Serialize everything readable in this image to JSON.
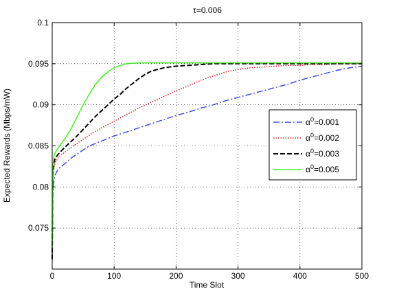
{
  "chart_data": {
    "type": "line",
    "title": "τ=0.006",
    "xlabel": "Time Slot",
    "ylabel": "Expected Rewards (Mbps/mW)",
    "xlim": [
      0,
      500
    ],
    "ylim": [
      0.07,
      0.1
    ],
    "xticks": [
      0,
      100,
      200,
      300,
      400,
      500
    ],
    "yticks": [
      0.075,
      0.08,
      0.085,
      0.09,
      0.095,
      0.1
    ],
    "ytick_labels": [
      "0.075",
      "0.08",
      "0.085",
      "0.09",
      "0.095",
      "0.1"
    ],
    "grid": true,
    "legend_position": "right",
    "series": [
      {
        "name": "α0=0.001",
        "label_base": "α",
        "label_sup": "0",
        "label_tail": "=0.001",
        "color": "#3b4fe0",
        "dash": "dashdot",
        "x": [
          0,
          1,
          3,
          5,
          10,
          20,
          30,
          40,
          50,
          60,
          70,
          80,
          90,
          100,
          120,
          140,
          160,
          180,
          200,
          220,
          240,
          260,
          280,
          300,
          320,
          340,
          360,
          380,
          400,
          420,
          440,
          460,
          480,
          500
        ],
        "y": [
          0.0715,
          0.079,
          0.081,
          0.0815,
          0.0822,
          0.0828,
          0.0835,
          0.084,
          0.0845,
          0.085,
          0.0853,
          0.0856,
          0.0859,
          0.0862,
          0.0867,
          0.0872,
          0.0877,
          0.0882,
          0.0887,
          0.0891,
          0.0896,
          0.09,
          0.0905,
          0.0909,
          0.0913,
          0.0917,
          0.0921,
          0.0925,
          0.093,
          0.0934,
          0.0938,
          0.0942,
          0.0945,
          0.0947
        ]
      },
      {
        "name": "α0=0.002",
        "label_base": "α",
        "label_sup": "0",
        "label_tail": "=0.002",
        "color": "#e02020",
        "dash": "dotted",
        "x": [
          0,
          1,
          3,
          5,
          10,
          20,
          30,
          40,
          50,
          60,
          70,
          80,
          90,
          100,
          120,
          140,
          160,
          180,
          200,
          220,
          240,
          260,
          280,
          300,
          320,
          340,
          360,
          380,
          400,
          420,
          440,
          460,
          480,
          500
        ],
        "y": [
          0.0725,
          0.081,
          0.0825,
          0.083,
          0.0836,
          0.0842,
          0.0848,
          0.0853,
          0.0858,
          0.0863,
          0.0868,
          0.0872,
          0.0876,
          0.088,
          0.0888,
          0.0896,
          0.0903,
          0.091,
          0.0917,
          0.0923,
          0.093,
          0.0935,
          0.094,
          0.0943,
          0.0945,
          0.0946,
          0.0947,
          0.0948,
          0.0948,
          0.0949,
          0.0949,
          0.095,
          0.095,
          0.095
        ]
      },
      {
        "name": "α0=0.003",
        "label_base": "α",
        "label_sup": "0",
        "label_tail": "=0.003",
        "color": "#000000",
        "dash": "dashed",
        "x": [
          0,
          1,
          3,
          5,
          10,
          20,
          30,
          40,
          50,
          60,
          70,
          80,
          90,
          100,
          110,
          120,
          130,
          140,
          150,
          160,
          180,
          200,
          220,
          240,
          260,
          280,
          300,
          320,
          340,
          360,
          380,
          400,
          420,
          440,
          460,
          480,
          500
        ],
        "y": [
          0.0712,
          0.0815,
          0.083,
          0.0835,
          0.084,
          0.0848,
          0.0855,
          0.0862,
          0.087,
          0.0878,
          0.0886,
          0.0893,
          0.09,
          0.0907,
          0.0913,
          0.092,
          0.0926,
          0.0932,
          0.0937,
          0.0941,
          0.0945,
          0.0947,
          0.0948,
          0.0949,
          0.095,
          0.095,
          0.095,
          0.095,
          0.095,
          0.095,
          0.095,
          0.095,
          0.095,
          0.095,
          0.095,
          0.095,
          0.095
        ]
      },
      {
        "name": "α0=0.005",
        "label_base": "α",
        "label_sup": "0",
        "label_tail": "=0.005",
        "color": "#44ee22",
        "dash": "solid",
        "x": [
          0,
          1,
          3,
          5,
          10,
          20,
          30,
          40,
          50,
          60,
          70,
          80,
          90,
          100,
          110,
          120,
          140,
          160,
          180,
          200,
          220,
          240,
          260,
          280,
          300,
          320,
          340,
          360,
          380,
          400,
          420,
          440,
          460,
          480,
          500
        ],
        "y": [
          0.0725,
          0.0825,
          0.0838,
          0.0842,
          0.0848,
          0.0858,
          0.087,
          0.0885,
          0.09,
          0.0913,
          0.0925,
          0.0934,
          0.094,
          0.0945,
          0.0948,
          0.095,
          0.0951,
          0.0951,
          0.0951,
          0.0951,
          0.0951,
          0.0951,
          0.0951,
          0.0951,
          0.0951,
          0.0951,
          0.0951,
          0.0951,
          0.0951,
          0.0951,
          0.0951,
          0.0951,
          0.0951,
          0.0951,
          0.0951
        ]
      }
    ]
  }
}
